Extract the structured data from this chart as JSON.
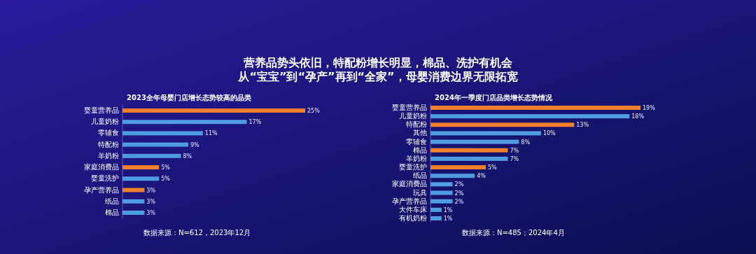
{
  "chart_data": [
    {
      "type": "bar",
      "orientation": "horizontal",
      "title": "2023全年母婴门店增长态势较高的品类",
      "categories": [
        "婴童营养品",
        "儿童奶粉",
        "零辅食",
        "特配粉",
        "羊奶粉",
        "家庭消费品",
        "婴童洗护",
        "孕产营养品",
        "纸品",
        "棉品"
      ],
      "values": [
        25,
        17,
        11,
        9,
        8,
        5,
        5,
        3,
        3,
        3
      ],
      "colors": [
        "#f07f2e",
        "#4f9de0",
        "#4f9de0",
        "#4f9de0",
        "#4f9de0",
        "#f07f2e",
        "#4f9de0",
        "#f07f2e",
        "#4f9de0",
        "#4f9de0"
      ],
      "value_labels": [
        "25%",
        "17%",
        "11%",
        "9%",
        "8%",
        "5%",
        "5%",
        "3%",
        "3%",
        "3%"
      ],
      "annotations": [
        "营养品势头依旧，特配粉增长明显，棉品、洗护有机会",
        "从“宝宝”到“孕产”再到“全家”，母婴消费边界无限拓宽",
        "数据来源：N=612，2023年12月"
      ]
    },
    {
      "type": "bar",
      "orientation": "horizontal",
      "title": "2024年一季度门店品类增长态势情况",
      "categories": [
        "婴童营养品",
        "儿童奶粉",
        "特配粉",
        "其他",
        "零辅食",
        "棉品",
        "羊奶粉",
        "婴童洗护",
        "纸品",
        "家庭消费品",
        "玩具",
        "孕产营养品",
        "大件车床",
        "有机奶粉"
      ],
      "values": [
        19,
        18,
        13,
        10,
        8,
        7,
        7,
        5,
        4,
        2,
        2,
        2,
        1,
        1
      ],
      "colors": [
        "#f07f2e",
        "#4f9de0",
        "#f07f2e",
        "#4f9de0",
        "#4f9de0",
        "#f07f2e",
        "#4f9de0",
        "#f07f2e",
        "#4f9de0",
        "#4f9de0",
        "#4f9de0",
        "#4f9de0",
        "#4f9de0",
        "#4f9de0"
      ],
      "value_labels": [
        "19%",
        "18%",
        "13%",
        "10%",
        "8%",
        "7%",
        "7%",
        "5%",
        "4%",
        "2%",
        "2%",
        "2%",
        "1%",
        "1%"
      ],
      "annotations": [
        "数据来源：N=485；2024年4月"
      ]
    }
  ]
}
